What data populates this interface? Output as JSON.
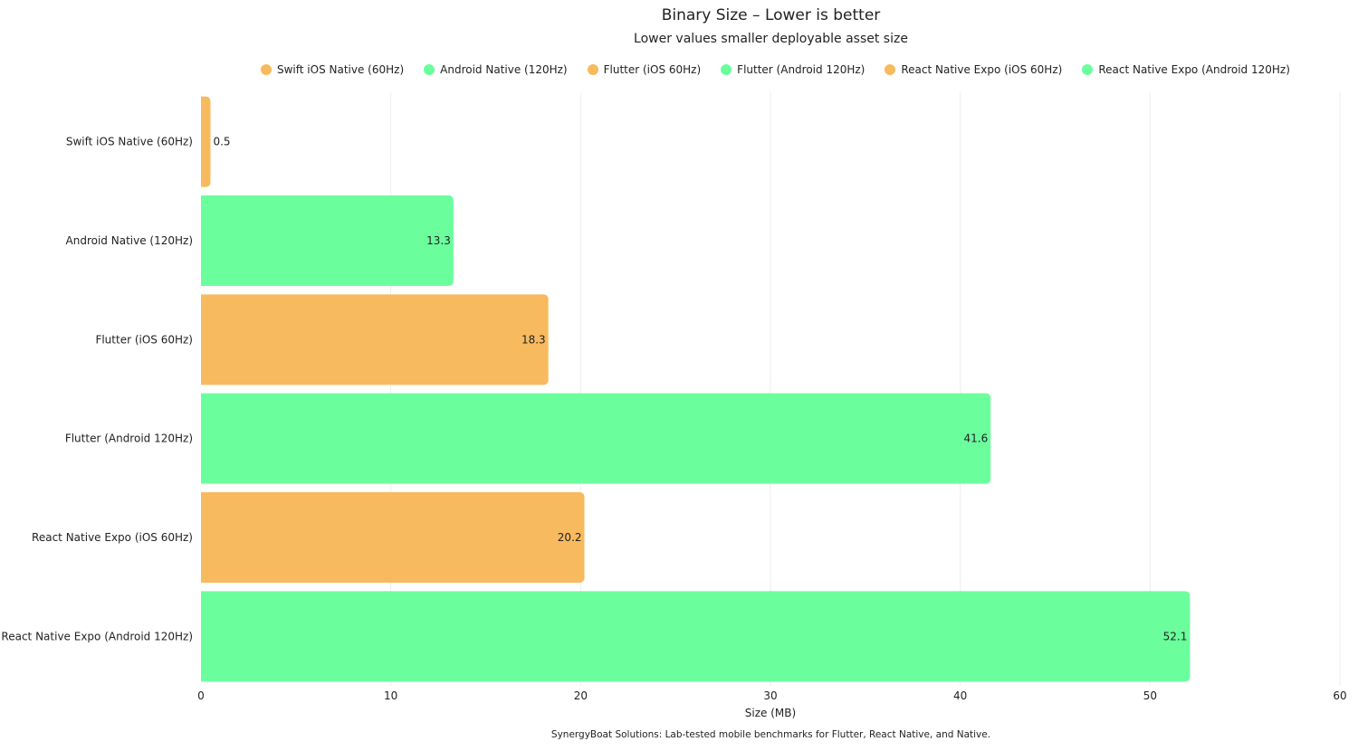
{
  "chart_data": {
    "type": "bar",
    "orientation": "horizontal",
    "title": "Binary Size – Lower is better",
    "subtitle": "Lower values smaller deployable asset size",
    "xlabel": "Size (MB)",
    "ylabel": "",
    "xlim": [
      0,
      60
    ],
    "xticks": [
      0,
      10,
      20,
      30,
      40,
      50,
      60
    ],
    "grid": true,
    "legend_placement": "top",
    "categories": [
      "Swift iOS Native (60Hz)",
      "Android Native (120Hz)",
      "Flutter (iOS 60Hz)",
      "Flutter (Android 120Hz)",
      "React Native Expo (iOS 60Hz)",
      "React Native Expo (Android 120Hz)"
    ],
    "values": [
      0.5,
      13.3,
      18.3,
      41.6,
      20.2,
      52.1
    ],
    "colors": [
      "#F8BA5E",
      "#6BFE9D",
      "#F8BA5E",
      "#6BFE9D",
      "#F8BA5E",
      "#6BFE9D"
    ],
    "legend": [
      "Swift iOS Native (60Hz)",
      "Android Native (120Hz)",
      "Flutter (iOS 60Hz)",
      "Flutter (Android 120Hz)",
      "React Native Expo (iOS 60Hz)",
      "React Native Expo (Android 120Hz)"
    ],
    "footer": "SynergyBoat Solutions: Lab-tested mobile benchmarks for Flutter, React Native, and Native."
  }
}
